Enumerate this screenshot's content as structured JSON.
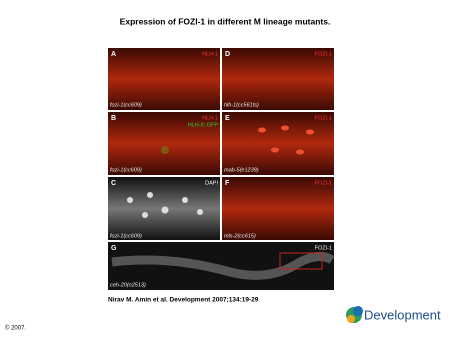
{
  "header": {
    "title": "Expression of FOZI-1 in different M lineage mutants."
  },
  "panels": [
    {
      "letter": "A",
      "labels": [
        "HLH-1"
      ],
      "genotype": "fozi-1(cc609)"
    },
    {
      "letter": "B",
      "labels": [
        "HLH-1",
        "HLH-8::GFP"
      ],
      "genotype": "fozi-1(cc609)"
    },
    {
      "letter": "C",
      "labels": [
        "DAPI"
      ],
      "genotype": "fozi-1(cc609)"
    },
    {
      "letter": "D",
      "labels": [
        "FOZI-1"
      ],
      "genotype": "hlh-1(cc561ts)"
    },
    {
      "letter": "E",
      "labels": [
        "FOZI-1"
      ],
      "genotype": "mab-5(e1239)"
    },
    {
      "letter": "F",
      "labels": [
        "FOZI-1"
      ],
      "genotype": "mls-2(cc615)"
    },
    {
      "letter": "G",
      "labels": [
        "FOZI-1"
      ],
      "genotype": "ceh-20(n2513)"
    }
  ],
  "footer": {
    "citation": "Nirav M. Amin et al. Development 2007;134:19-29",
    "copyright": "© 2007.",
    "logo": "Development"
  }
}
